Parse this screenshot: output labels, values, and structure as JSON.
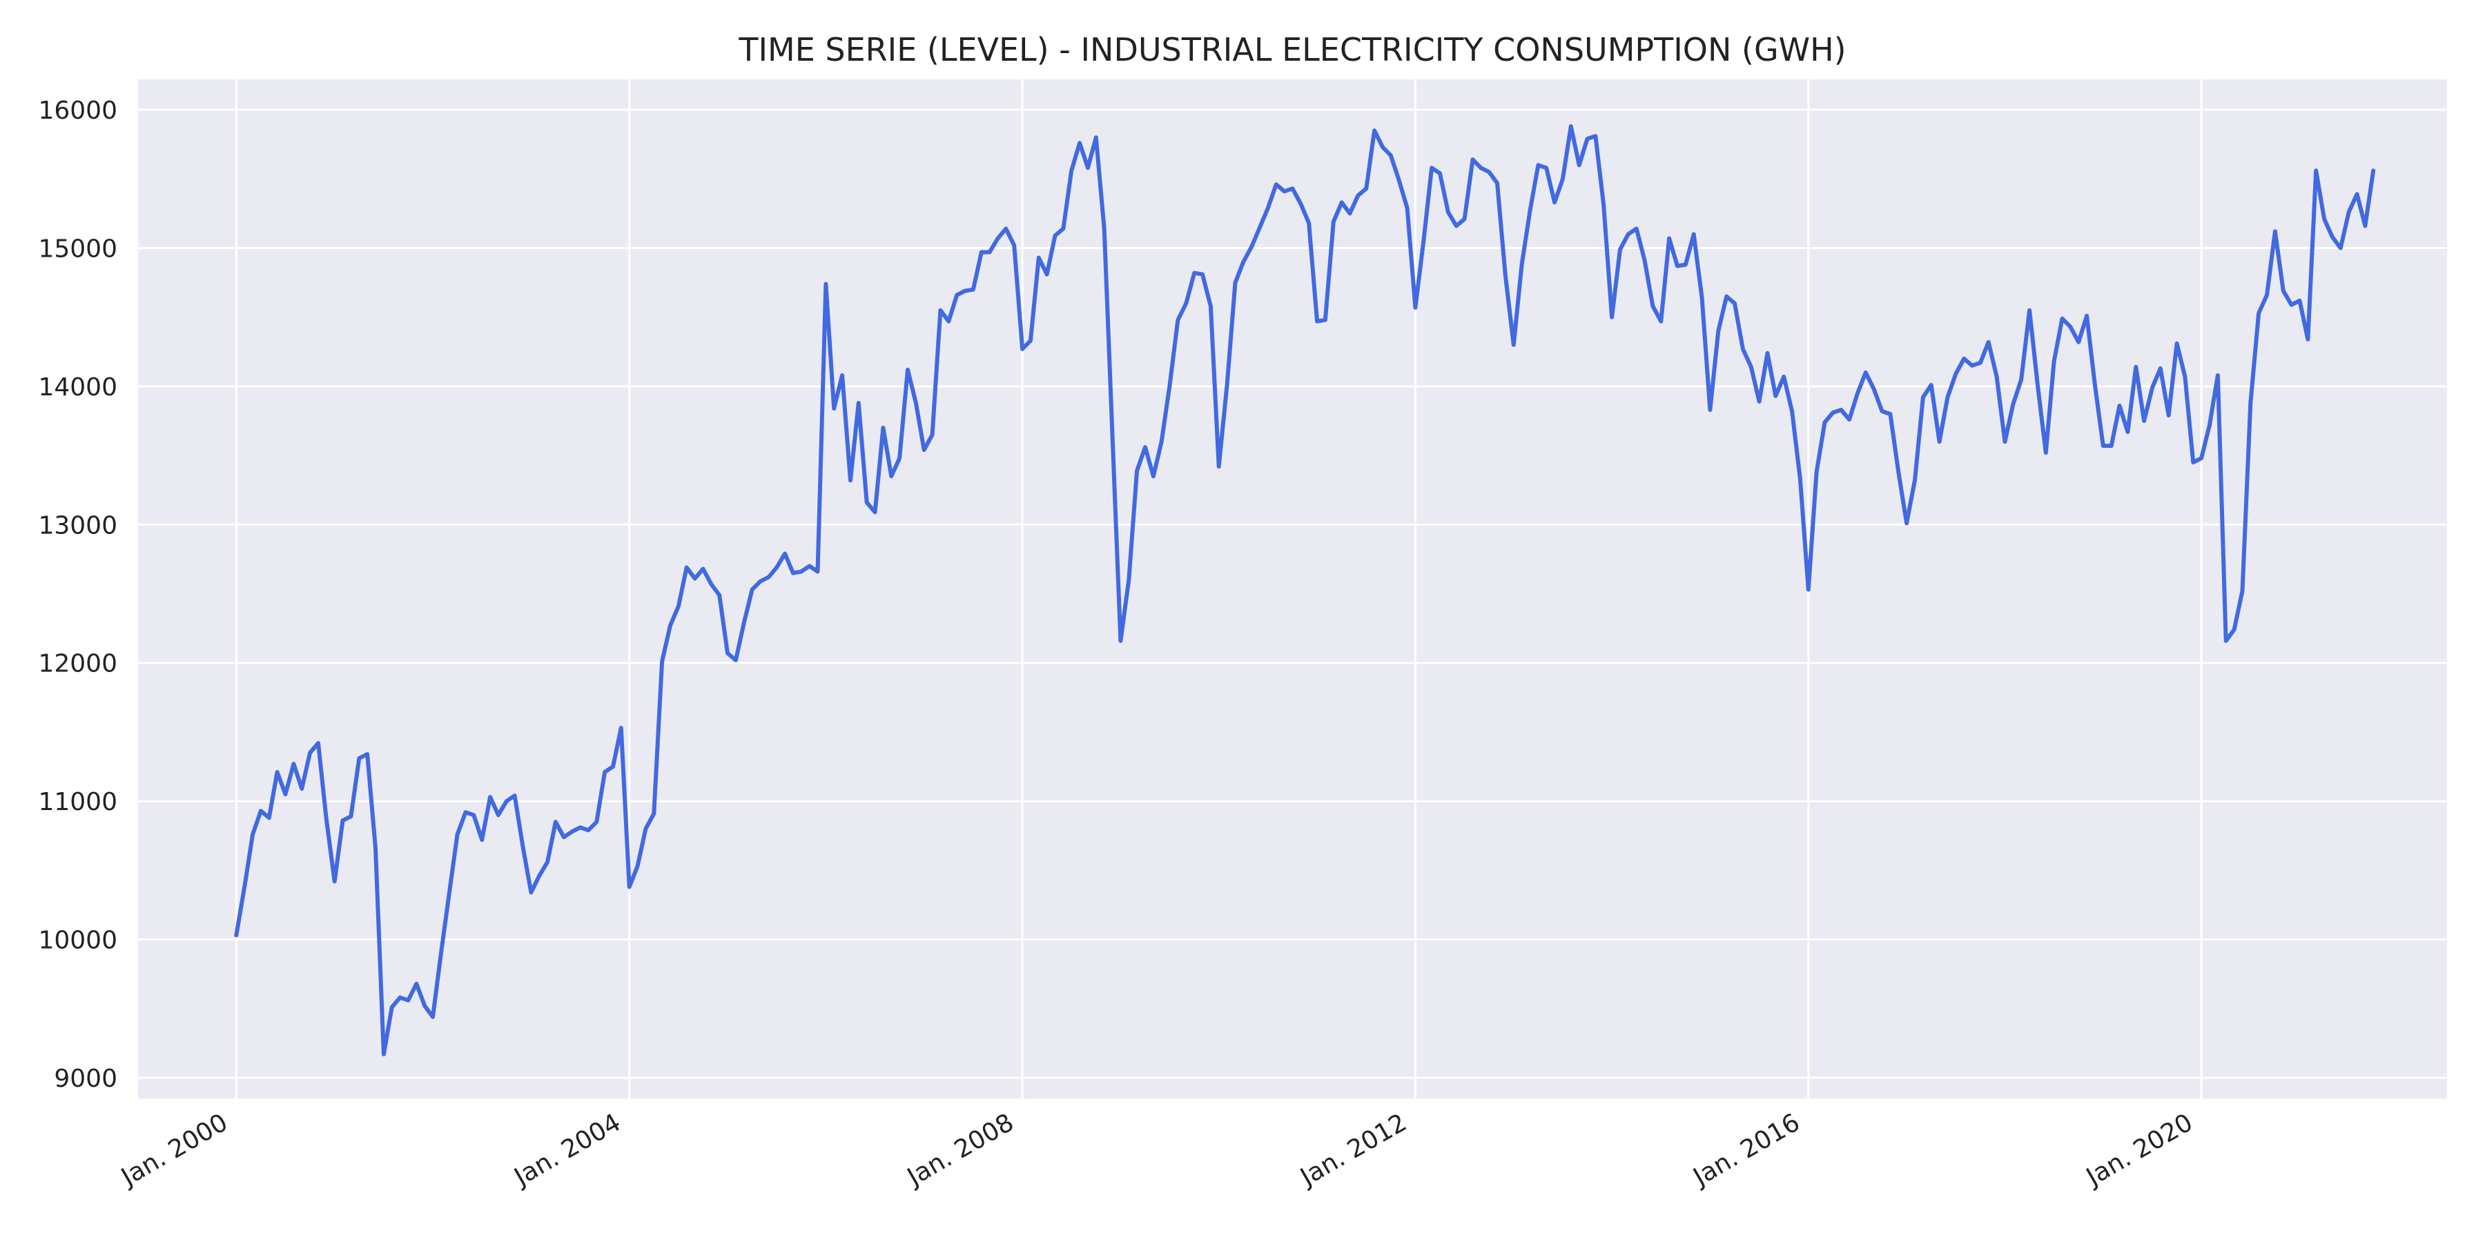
{
  "chart_data": {
    "type": "line",
    "title": "TIME SERIE (LEVEL) - INDUSTRIAL ELECTRICITY CONSUMPTION (GWH)",
    "xlabel": "",
    "ylabel": "",
    "x_start": "2000-01",
    "x_frequency": "monthly",
    "xlim": [
      "1999-01",
      "2022-07"
    ],
    "ylim": [
      8850,
      16220
    ],
    "x_ticks": [
      "Jan. 2000",
      "Jan. 2004",
      "Jan. 2008",
      "Jan. 2012",
      "Jan. 2016",
      "Jan. 2020"
    ],
    "y_ticks": [
      9000,
      10000,
      11000,
      12000,
      13000,
      14000,
      15000,
      16000
    ],
    "grid": true,
    "legend": "none",
    "colors": {
      "line": "#4169e1",
      "plot_background": "#eaeaf2",
      "grid": "#ffffff"
    },
    "series": [
      {
        "values": [
          10030,
          10380,
          10760,
          10930,
          10880,
          11210,
          11050,
          11270,
          11090,
          11350,
          11420,
          10870,
          10420,
          10860,
          10890,
          11310,
          11340,
          10660,
          9170,
          9510,
          9580,
          9560,
          9680,
          9520,
          9440,
          9900,
          10330,
          10760,
          10920,
          10900,
          10720,
          11030,
          10900,
          11000,
          11040,
          10670,
          10340,
          10460,
          10560,
          10850,
          10740,
          10780,
          10810,
          10790,
          10850,
          11210,
          11250,
          11530,
          10380,
          10530,
          10800,
          10910,
          12010,
          12270,
          12410,
          12690,
          12610,
          12680,
          12570,
          12490,
          12070,
          12020,
          12290,
          12530,
          12590,
          12620,
          12690,
          12790,
          12650,
          12660,
          12700,
          12660,
          14740,
          13840,
          14080,
          13320,
          13880,
          13160,
          13090,
          13700,
          13350,
          13480,
          14120,
          13880,
          13540,
          13650,
          14550,
          14470,
          14660,
          14690,
          14700,
          14970,
          14970,
          15070,
          15140,
          15020,
          14270,
          14330,
          14930,
          14810,
          15090,
          15140,
          15560,
          15760,
          15580,
          15800,
          15140,
          13650,
          12160,
          12600,
          13390,
          13560,
          13350,
          13600,
          14010,
          14480,
          14600,
          14820,
          14810,
          14580,
          13420,
          14010,
          14750,
          14900,
          15010,
          15150,
          15290,
          15460,
          15410,
          15430,
          15320,
          15180,
          14470,
          14480,
          15190,
          15330,
          15250,
          15380,
          15430,
          15850,
          15730,
          15670,
          15490,
          15290,
          14570,
          15050,
          15580,
          15540,
          15260,
          15160,
          15210,
          15640,
          15580,
          15550,
          15470,
          14800,
          14300,
          14880,
          15270,
          15600,
          15580,
          15330,
          15500,
          15880,
          15600,
          15790,
          15810,
          15310,
          14500,
          14990,
          15100,
          15140,
          14910,
          14580,
          14470,
          15070,
          14870,
          14880,
          15100,
          14640,
          13830,
          14400,
          14650,
          14600,
          14270,
          14140,
          13890,
          14240,
          13930,
          14070,
          13820,
          13330,
          12530,
          13380,
          13740,
          13810,
          13830,
          13760,
          13950,
          14100,
          13980,
          13820,
          13800,
          13380,
          13010,
          13320,
          13920,
          14010,
          13600,
          13920,
          14090,
          14200,
          14150,
          14170,
          14320,
          14070,
          13600,
          13870,
          14050,
          14550,
          14010,
          13520,
          14180,
          14490,
          14430,
          14320,
          14510,
          14010,
          13570,
          13570,
          13860,
          13670,
          14140,
          13750,
          13990,
          14130,
          13790,
          14310,
          14070,
          13450,
          13480,
          13720,
          14080,
          12160,
          12240,
          12520,
          13880,
          14530,
          14660,
          15120,
          14690,
          14590,
          14620,
          14340,
          15560,
          15210,
          15080,
          15000,
          15260,
          15390,
          15160,
          15560
        ]
      }
    ]
  }
}
